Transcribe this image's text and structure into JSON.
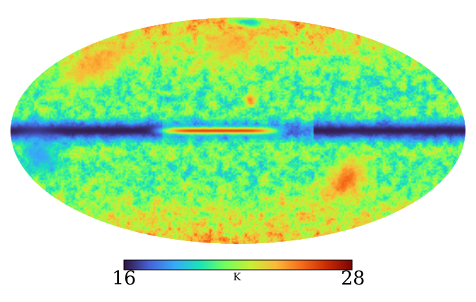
{
  "colorbar": {
    "min_label": "16",
    "max_label": "28",
    "unit_label": "K",
    "min": 16,
    "max": 28,
    "colormap": [
      "#30123b",
      "#4662d7",
      "#36aaf9",
      "#1ae4b6",
      "#72fe5e",
      "#c8ef34",
      "#faba39",
      "#f66b19",
      "#ca2a04",
      "#7a0403"
    ]
  },
  "map": {
    "projection": "mollweide",
    "features": [
      {
        "name": "galactic-plane-band",
        "lat": 0,
        "width": 6,
        "value": 16.2
      },
      {
        "name": "central-red-streak",
        "lon_center": 15,
        "lon_half_width": 45,
        "lat": 0,
        "width": 2.2,
        "value": 26
      },
      {
        "name": "hot-spot-lower-right",
        "lon": -95,
        "lat": -32,
        "radius": 14,
        "value": 26.5
      },
      {
        "name": "hot-spot-upper-left",
        "lon": 140,
        "lat": 45,
        "radius": 18,
        "value": 25
      },
      {
        "name": "hot-spot-upper-center",
        "lon": 10,
        "lat": 60,
        "radius": 15,
        "value": 24.5
      },
      {
        "name": "blue-filament-top",
        "lon": -30,
        "lat": 82,
        "radius": 6,
        "value": 18
      },
      {
        "name": "cold-region-left",
        "lon": 160,
        "lat": -15,
        "radius": 14,
        "value": 18
      },
      {
        "name": "red-spur-center",
        "lon": -10,
        "lat": 20,
        "radius": 4,
        "value": 26
      }
    ]
  }
}
